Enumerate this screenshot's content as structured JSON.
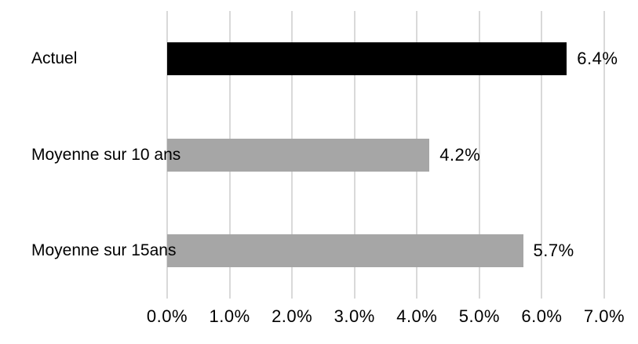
{
  "chart_data": {
    "type": "bar",
    "orientation": "horizontal",
    "title": "",
    "xlabel": "",
    "ylabel": "",
    "categories": [
      "Actuel",
      "Moyenne sur 10 ans",
      "Moyenne sur 15ans"
    ],
    "values": [
      6.4,
      4.2,
      5.7
    ],
    "value_labels": [
      "6.4%",
      "4.2%",
      "5.7%"
    ],
    "bar_colors": [
      "#000000",
      "#a6a6a6",
      "#a6a6a6"
    ],
    "xlim": [
      0,
      7
    ],
    "x_ticks": [
      0,
      1,
      2,
      3,
      4,
      5,
      6,
      7
    ],
    "x_tick_labels": [
      "0.0%",
      "1.0%",
      "2.0%",
      "3.0%",
      "4.0%",
      "5.0%",
      "6.0%",
      "7.0%"
    ],
    "grid": "vertical-only",
    "legend": "none",
    "colors": {
      "gridline": "#d9d9d9",
      "text": "#000000",
      "background": "#ffffff"
    }
  }
}
